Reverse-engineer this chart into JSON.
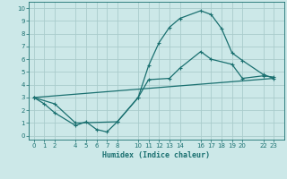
{
  "title": "",
  "xlabel": "Humidex (Indice chaleur)",
  "ylabel": "",
  "bg_color": "#cce8e8",
  "line_color": "#1a7070",
  "grid_color": "#aacccc",
  "xlim": [
    -0.5,
    24
  ],
  "ylim": [
    -0.3,
    10.5
  ],
  "xticks": [
    0,
    1,
    2,
    4,
    5,
    6,
    7,
    8,
    10,
    11,
    12,
    13,
    14,
    16,
    17,
    18,
    19,
    20,
    22,
    23
  ],
  "yticks": [
    0,
    1,
    2,
    3,
    4,
    5,
    6,
    7,
    8,
    9,
    10
  ],
  "line1": {
    "x": [
      0,
      1,
      2,
      4,
      5,
      6,
      7,
      8,
      10,
      11,
      12,
      13,
      14,
      16,
      17,
      18,
      19,
      20,
      22,
      23
    ],
    "y": [
      3.0,
      2.5,
      1.8,
      0.8,
      1.1,
      0.5,
      0.3,
      1.1,
      3.0,
      5.5,
      7.3,
      8.5,
      9.2,
      9.8,
      9.5,
      8.4,
      6.5,
      5.9,
      4.8,
      4.5
    ]
  },
  "line2": {
    "x": [
      0,
      2,
      4,
      8,
      10,
      11,
      13,
      14,
      16,
      17,
      19,
      20,
      22,
      23
    ],
    "y": [
      3.0,
      2.5,
      1.0,
      1.1,
      3.0,
      4.4,
      4.5,
      5.3,
      6.6,
      6.0,
      5.6,
      4.5,
      4.7,
      4.6
    ]
  },
  "line3": {
    "x": [
      0,
      23
    ],
    "y": [
      3.0,
      4.5
    ]
  }
}
